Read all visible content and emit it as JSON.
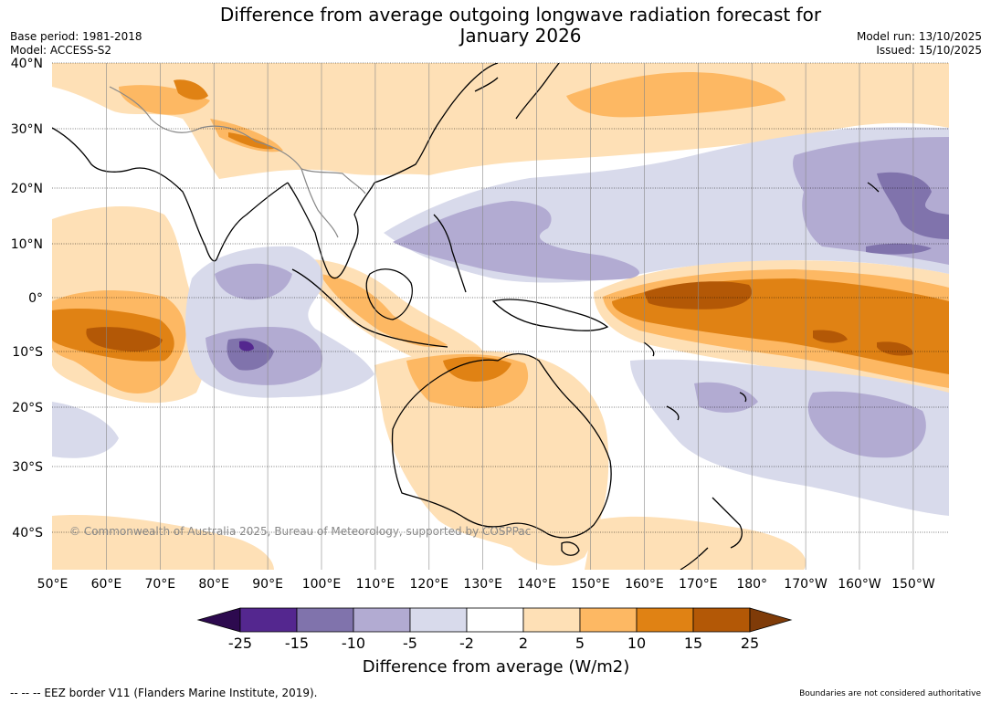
{
  "title": "Difference from average outgoing longwave radiation forecast for January 2026",
  "title_line1": "Difference from average outgoing longwave radiation forecast for",
  "title_line2": "January 2026",
  "base_period": "Base period: 1981-2018",
  "model": "Model: ACCESS-S2",
  "model_run": "Model run: 13/10/2025",
  "issued": "Issued: 15/10/2025",
  "copyright": "© Commonwealth of Australia 2025, Bureau of Meteorology, supported by COSPPac",
  "lat_labels": [
    "40°N",
    "30°N",
    "20°N",
    "10°N",
    "0°",
    "10°S",
    "20°S",
    "30°S",
    "40°S"
  ],
  "lon_labels": [
    "50°E",
    "60°E",
    "70°E",
    "80°E",
    "90°E",
    "100°E",
    "110°E",
    "120°E",
    "130°E",
    "140°E",
    "150°E",
    "160°E",
    "170°E",
    "180°",
    "170°W",
    "160°W",
    "150°W"
  ],
  "colorbar": {
    "title": "Difference from average (W/m2)",
    "tick_labels": [
      "-25",
      "-15",
      "-10",
      "-5",
      "-2",
      "2",
      "5",
      "10",
      "15",
      "25"
    ],
    "colors": [
      "#2d0a4f",
      "#54278f",
      "#8073ac",
      "#b2abd2",
      "#d8daeb",
      "#ffffff",
      "#fee0b6",
      "#fdb863",
      "#e08214",
      "#b35806",
      "#7f3b08"
    ]
  },
  "footer_left": "--  --  -- EEZ border V11 (Flanders Marine Institute, 2019).",
  "footer_right": "Boundaries are not considered authoritative"
}
